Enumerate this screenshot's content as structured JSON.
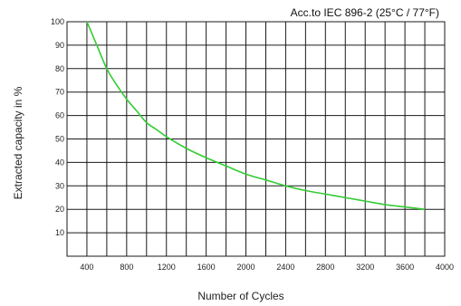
{
  "chart_data": {
    "type": "line",
    "title": "Acc.to IEC 896-2 (25°C / 77°F)",
    "xlabel": "Number of Cycles",
    "ylabel": "Extracted capacity in %",
    "xlim": [
      200,
      4000
    ],
    "ylim": [
      0,
      100
    ],
    "x_ticks": [
      400,
      800,
      1200,
      1600,
      2000,
      2400,
      2800,
      3200,
      3600,
      4000
    ],
    "y_ticks": [
      10,
      20,
      30,
      40,
      50,
      60,
      70,
      80,
      90,
      100
    ],
    "x_gridlines": [
      200,
      400,
      600,
      800,
      1000,
      1200,
      1400,
      1600,
      1800,
      2000,
      2200,
      2400,
      2600,
      2800,
      3000,
      3200,
      3400,
      3600,
      3800,
      4000
    ],
    "grid": true,
    "series": [
      {
        "color": "#33cc33",
        "x": [
          400,
          500,
          600,
          700,
          800,
          900,
          1000,
          1100,
          1200,
          1400,
          1600,
          1800,
          2000,
          2200,
          2400,
          2600,
          2800,
          3000,
          3200,
          3400,
          3600,
          3800
        ],
        "y": [
          100,
          90,
          80,
          73,
          67,
          62,
          57,
          54,
          51,
          46,
          42,
          38.5,
          35,
          32.5,
          30,
          28,
          26.5,
          25,
          23.5,
          22,
          21,
          20
        ]
      }
    ]
  }
}
